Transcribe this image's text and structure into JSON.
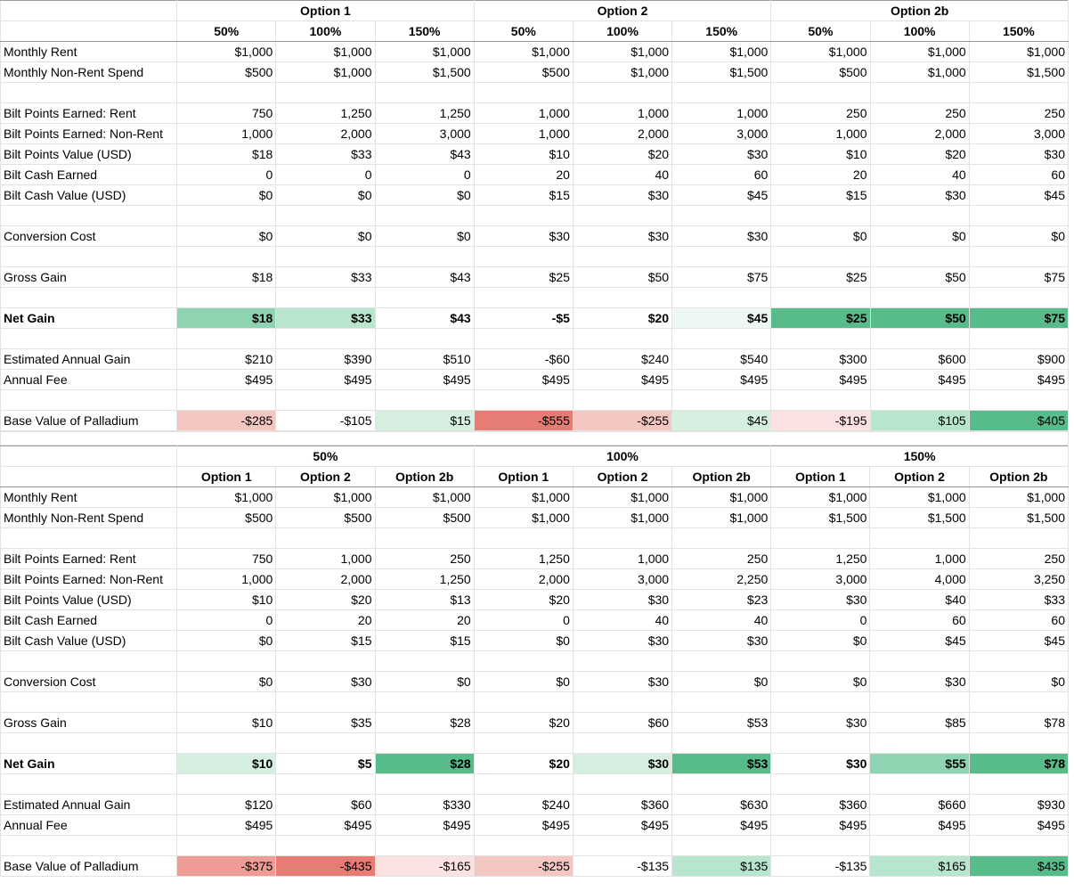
{
  "colors": {
    "green_strong": "#57bb8a",
    "green_mid": "#8fd4b0",
    "green_light": "#b8e5cd",
    "green_pale": "#d6efe1",
    "green_faint": "#eef8f2",
    "red_strong": "#e67c73",
    "red_mid": "#ee9c95",
    "red_light": "#f5c7c3",
    "red_pale": "#fbe2e0"
  },
  "tables": [
    {
      "group_headers": [
        "Option 1",
        "Option 2",
        "Option 2b"
      ],
      "sub_headers": [
        "50%",
        "100%",
        "150%",
        "50%",
        "100%",
        "150%",
        "50%",
        "100%",
        "150%"
      ],
      "sub_header_align": "left",
      "sections": [
        {
          "rows": [
            {
              "label": "Monthly Rent",
              "values": [
                "$1,000",
                "$1,000",
                "$1,000",
                "$1,000",
                "$1,000",
                "$1,000",
                "$1,000",
                "$1,000",
                "$1,000"
              ]
            },
            {
              "label": "Monthly Non-Rent Spend",
              "values": [
                "$500",
                "$1,000",
                "$1,500",
                "$500",
                "$1,000",
                "$1,500",
                "$500",
                "$1,000",
                "$1,500"
              ]
            }
          ]
        },
        {
          "rows": [
            {
              "label": "Bilt Points Earned: Rent",
              "values": [
                "750",
                "1,250",
                "1,250",
                "1,000",
                "1,000",
                "1,000",
                "250",
                "250",
                "250"
              ]
            },
            {
              "label": "Bilt Points Earned: Non-Rent",
              "values": [
                "1,000",
                "2,000",
                "3,000",
                "1,000",
                "2,000",
                "3,000",
                "1,000",
                "2,000",
                "3,000"
              ]
            },
            {
              "label": "Bilt Points Value (USD)",
              "values": [
                "$18",
                "$33",
                "$43",
                "$10",
                "$20",
                "$30",
                "$10",
                "$20",
                "$30"
              ]
            },
            {
              "label": "Bilt Cash Earned",
              "values": [
                "0",
                "0",
                "0",
                "20",
                "40",
                "60",
                "20",
                "40",
                "60"
              ]
            },
            {
              "label": "Bilt Cash Value (USD)",
              "values": [
                "$0",
                "$0",
                "$0",
                "$15",
                "$30",
                "$45",
                "$15",
                "$30",
                "$45"
              ]
            }
          ]
        },
        {
          "rows": [
            {
              "label": "Conversion Cost",
              "values": [
                "$0",
                "$0",
                "$0",
                "$30",
                "$30",
                "$30",
                "$0",
                "$0",
                "$0"
              ]
            }
          ]
        },
        {
          "rows": [
            {
              "label": "Gross Gain",
              "values": [
                "$18",
                "$33",
                "$43",
                "$25",
                "$50",
                "$75",
                "$25",
                "$50",
                "$75"
              ]
            }
          ]
        },
        {
          "rows": [
            {
              "label": "Net Gain",
              "bold": true,
              "values": [
                "$18",
                "$33",
                "$43",
                "-$5",
                "$20",
                "$45",
                "$25",
                "$50",
                "$75"
              ],
              "fills": [
                "green_mid",
                "green_light",
                "",
                "",
                "",
                "green_faint",
                "green_strong",
                "green_strong",
                "green_strong"
              ]
            }
          ]
        },
        {
          "rows": [
            {
              "label": "Estimated Annual Gain",
              "values": [
                "$210",
                "$390",
                "$510",
                "-$60",
                "$240",
                "$540",
                "$300",
                "$600",
                "$900"
              ]
            },
            {
              "label": "Annual Fee",
              "values": [
                "$495",
                "$495",
                "$495",
                "$495",
                "$495",
                "$495",
                "$495",
                "$495",
                "$495"
              ]
            }
          ]
        },
        {
          "rows": [
            {
              "label": "Base Value of Palladium",
              "values": [
                "-$285",
                "-$105",
                "$15",
                "-$555",
                "-$255",
                "$45",
                "-$195",
                "$105",
                "$405"
              ],
              "fills": [
                "red_light",
                "",
                "green_pale",
                "red_strong",
                "red_light",
                "green_pale",
                "red_pale",
                "green_light",
                "green_strong"
              ]
            }
          ]
        }
      ]
    },
    {
      "group_headers": [
        "50%",
        "100%",
        "150%"
      ],
      "sub_headers": [
        "Option 1",
        "Option 2",
        "Option 2b",
        "Option 1",
        "Option 2",
        "Option 2b",
        "Option 1",
        "Option 2",
        "Option 2b"
      ],
      "sub_header_align": "left",
      "sections": [
        {
          "rows": [
            {
              "label": "Monthly Rent",
              "values": [
                "$1,000",
                "$1,000",
                "$1,000",
                "$1,000",
                "$1,000",
                "$1,000",
                "$1,000",
                "$1,000",
                "$1,000"
              ]
            },
            {
              "label": "Monthly Non-Rent Spend",
              "values": [
                "$500",
                "$500",
                "$500",
                "$1,000",
                "$1,000",
                "$1,000",
                "$1,500",
                "$1,500",
                "$1,500"
              ]
            }
          ]
        },
        {
          "rows": [
            {
              "label": "Bilt Points Earned: Rent",
              "values": [
                "750",
                "1,000",
                "250",
                "1,250",
                "1,000",
                "250",
                "1,250",
                "1,000",
                "250"
              ]
            },
            {
              "label": "Bilt Points Earned: Non-Rent",
              "values": [
                "1,000",
                "2,000",
                "1,250",
                "2,000",
                "3,000",
                "2,250",
                "3,000",
                "4,000",
                "3,250"
              ]
            },
            {
              "label": "Bilt Points Value (USD)",
              "values": [
                "$10",
                "$20",
                "$13",
                "$20",
                "$30",
                "$23",
                "$30",
                "$40",
                "$33"
              ]
            },
            {
              "label": "Bilt Cash Earned",
              "values": [
                "0",
                "20",
                "20",
                "0",
                "40",
                "40",
                "0",
                "60",
                "60"
              ]
            },
            {
              "label": "Bilt Cash Value (USD)",
              "values": [
                "$0",
                "$15",
                "$15",
                "$0",
                "$30",
                "$30",
                "$0",
                "$45",
                "$45"
              ]
            }
          ]
        },
        {
          "rows": [
            {
              "label": "Conversion Cost",
              "values": [
                "$0",
                "$30",
                "$0",
                "$0",
                "$30",
                "$0",
                "$0",
                "$30",
                "$0"
              ]
            }
          ]
        },
        {
          "rows": [
            {
              "label": "Gross Gain",
              "values": [
                "$10",
                "$35",
                "$28",
                "$20",
                "$60",
                "$53",
                "$30",
                "$85",
                "$78"
              ]
            }
          ]
        },
        {
          "rows": [
            {
              "label": "Net Gain",
              "bold": true,
              "values": [
                "$10",
                "$5",
                "$28",
                "$20",
                "$30",
                "$53",
                "$30",
                "$55",
                "$78"
              ],
              "fills": [
                "green_pale",
                "",
                "green_strong",
                "",
                "green_pale",
                "green_strong",
                "",
                "green_mid",
                "green_strong"
              ]
            }
          ]
        },
        {
          "rows": [
            {
              "label": "Estimated Annual Gain",
              "values": [
                "$120",
                "$60",
                "$330",
                "$240",
                "$360",
                "$630",
                "$360",
                "$660",
                "$930"
              ]
            },
            {
              "label": "Annual Fee",
              "values": [
                "$495",
                "$495",
                "$495",
                "$495",
                "$495",
                "$495",
                "$495",
                "$495",
                "$495"
              ]
            }
          ]
        },
        {
          "rows": [
            {
              "label": "Base Value of Palladium",
              "values": [
                "-$375",
                "-$435",
                "-$165",
                "-$255",
                "-$135",
                "$135",
                "-$135",
                "$165",
                "$435"
              ],
              "fills": [
                "red_mid",
                "red_strong",
                "red_pale",
                "red_light",
                "",
                "green_light",
                "",
                "green_light",
                "green_strong"
              ]
            }
          ]
        }
      ]
    }
  ]
}
